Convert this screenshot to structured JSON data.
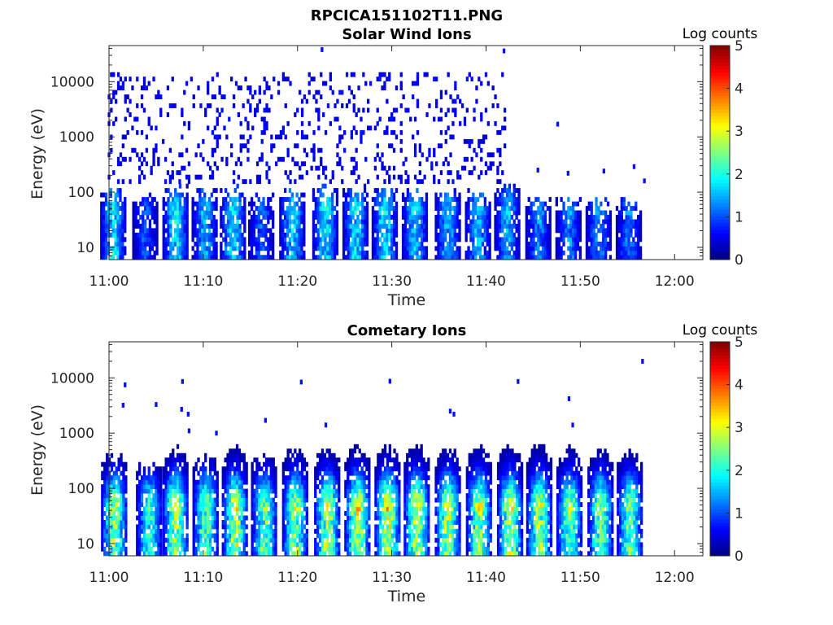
{
  "figure": {
    "title": "RPCICA151102T11.PNG"
  },
  "colors": {
    "background": "#ffffff",
    "axis": "#262626",
    "colormap": "jet"
  },
  "chart_data": [
    {
      "type": "heatmap",
      "title": "Solar Wind Ions",
      "xlabel": "Time",
      "ylabel": "Energy (eV)",
      "x_tick_labels": [
        "11:00",
        "11:10",
        "11:20",
        "11:30",
        "11:40",
        "11:50",
        "12:00"
      ],
      "x_range_minutes": [
        0,
        63
      ],
      "y_scale": "log",
      "y_tick_values": [
        10,
        100,
        1000,
        10000
      ],
      "y_tick_labels": [
        "10",
        "100",
        "1000",
        "10000"
      ],
      "y_range": [
        6,
        45000
      ],
      "colorbar": {
        "title": "Log counts",
        "range": [
          0,
          5
        ],
        "tick_labels": [
          "0",
          "1",
          "2",
          "3",
          "4",
          "5"
        ]
      },
      "bursts": [
        {
          "t": 0.5,
          "peak": 1.9,
          "top": 90
        },
        {
          "t": 3.9,
          "peak": 1.1,
          "top": 70
        },
        {
          "t": 7.1,
          "peak": 1.9,
          "top": 110
        },
        {
          "t": 10.2,
          "peak": 1.6,
          "top": 90
        },
        {
          "t": 13.2,
          "peak": 1.9,
          "top": 100
        },
        {
          "t": 16.2,
          "peak": 1.2,
          "top": 70
        },
        {
          "t": 19.5,
          "peak": 1.8,
          "top": 90
        },
        {
          "t": 23.0,
          "peak": 1.9,
          "top": 100
        },
        {
          "t": 26.2,
          "peak": 1.9,
          "top": 100
        },
        {
          "t": 29.3,
          "peak": 1.9,
          "top": 100
        },
        {
          "t": 32.5,
          "peak": 1.8,
          "top": 90
        },
        {
          "t": 36.0,
          "peak": 1.7,
          "top": 90
        },
        {
          "t": 39.2,
          "peak": 1.7,
          "top": 90
        },
        {
          "t": 42.3,
          "peak": 1.6,
          "top": 120
        },
        {
          "t": 45.6,
          "peak": 1.4,
          "top": 70
        },
        {
          "t": 48.8,
          "peak": 1.4,
          "top": 60
        },
        {
          "t": 52.0,
          "peak": 1.4,
          "top": 60
        },
        {
          "t": 55.2,
          "peak": 1.3,
          "top": 60
        }
      ],
      "background_noise": {
        "t_end": 42.2,
        "e_min": 150,
        "e_max": 15000,
        "level": 0.6
      },
      "sparse_points": [
        {
          "t": 47.6,
          "e": 1700
        },
        {
          "t": 45.5,
          "e": 250
        },
        {
          "t": 48.7,
          "e": 220
        },
        {
          "t": 52.5,
          "e": 240
        },
        {
          "t": 55.7,
          "e": 290
        },
        {
          "t": 56.8,
          "e": 160
        },
        {
          "t": 22.6,
          "e": 38000
        },
        {
          "t": 41.9,
          "e": 36000
        }
      ]
    },
    {
      "type": "heatmap",
      "title": "Cometary Ions",
      "xlabel": "Time",
      "ylabel": "Energy (eV)",
      "x_tick_labels": [
        "11:00",
        "11:10",
        "11:20",
        "11:30",
        "11:40",
        "11:50",
        "12:00"
      ],
      "x_range_minutes": [
        0,
        63
      ],
      "y_scale": "log",
      "y_tick_values": [
        10,
        100,
        1000,
        10000
      ],
      "y_tick_labels": [
        "10",
        "100",
        "1000",
        "10000"
      ],
      "y_range": [
        6,
        45000
      ],
      "colorbar": {
        "title": "Log counts",
        "range": [
          0,
          5
        ],
        "tick_labels": [
          "0",
          "1",
          "2",
          "3",
          "4",
          "5"
        ]
      },
      "bursts": [
        {
          "t": 0.6,
          "peak": 2.8,
          "top": 400
        },
        {
          "t": 4.3,
          "peak": 2.2,
          "top": 250
        },
        {
          "t": 7.1,
          "peak": 3.0,
          "top": 600
        },
        {
          "t": 10.3,
          "peak": 2.6,
          "top": 350
        },
        {
          "t": 13.4,
          "peak": 3.0,
          "top": 600
        },
        {
          "t": 16.5,
          "peak": 2.5,
          "top": 350
        },
        {
          "t": 19.8,
          "peak": 2.8,
          "top": 500
        },
        {
          "t": 23.2,
          "peak": 2.9,
          "top": 700
        },
        {
          "t": 26.4,
          "peak": 3.1,
          "top": 600
        },
        {
          "t": 29.6,
          "peak": 3.2,
          "top": 700
        },
        {
          "t": 32.7,
          "peak": 3.0,
          "top": 600
        },
        {
          "t": 36.0,
          "peak": 2.9,
          "top": 600
        },
        {
          "t": 39.3,
          "peak": 2.9,
          "top": 700
        },
        {
          "t": 42.6,
          "peak": 3.0,
          "top": 700
        },
        {
          "t": 45.7,
          "peak": 2.9,
          "top": 700
        },
        {
          "t": 48.9,
          "peak": 2.7,
          "top": 500
        },
        {
          "t": 52.2,
          "peak": 2.7,
          "top": 500
        },
        {
          "t": 55.3,
          "peak": 2.6,
          "top": 400
        }
      ],
      "background_noise": null,
      "sparse_points": [
        {
          "t": 1.7,
          "e": 7500
        },
        {
          "t": 1.5,
          "e": 3200
        },
        {
          "t": 5.0,
          "e": 3300
        },
        {
          "t": 7.8,
          "e": 8600
        },
        {
          "t": 7.7,
          "e": 2700
        },
        {
          "t": 8.4,
          "e": 2200
        },
        {
          "t": 8.5,
          "e": 1100
        },
        {
          "t": 16.6,
          "e": 1700
        },
        {
          "t": 20.4,
          "e": 8400
        },
        {
          "t": 23.0,
          "e": 1400
        },
        {
          "t": 29.8,
          "e": 8700
        },
        {
          "t": 36.2,
          "e": 2500
        },
        {
          "t": 36.6,
          "e": 2200
        },
        {
          "t": 43.4,
          "e": 8600
        },
        {
          "t": 48.8,
          "e": 4200
        },
        {
          "t": 49.2,
          "e": 1400
        },
        {
          "t": 56.6,
          "e": 20000
        },
        {
          "t": 11.4,
          "e": 1000
        }
      ]
    }
  ]
}
